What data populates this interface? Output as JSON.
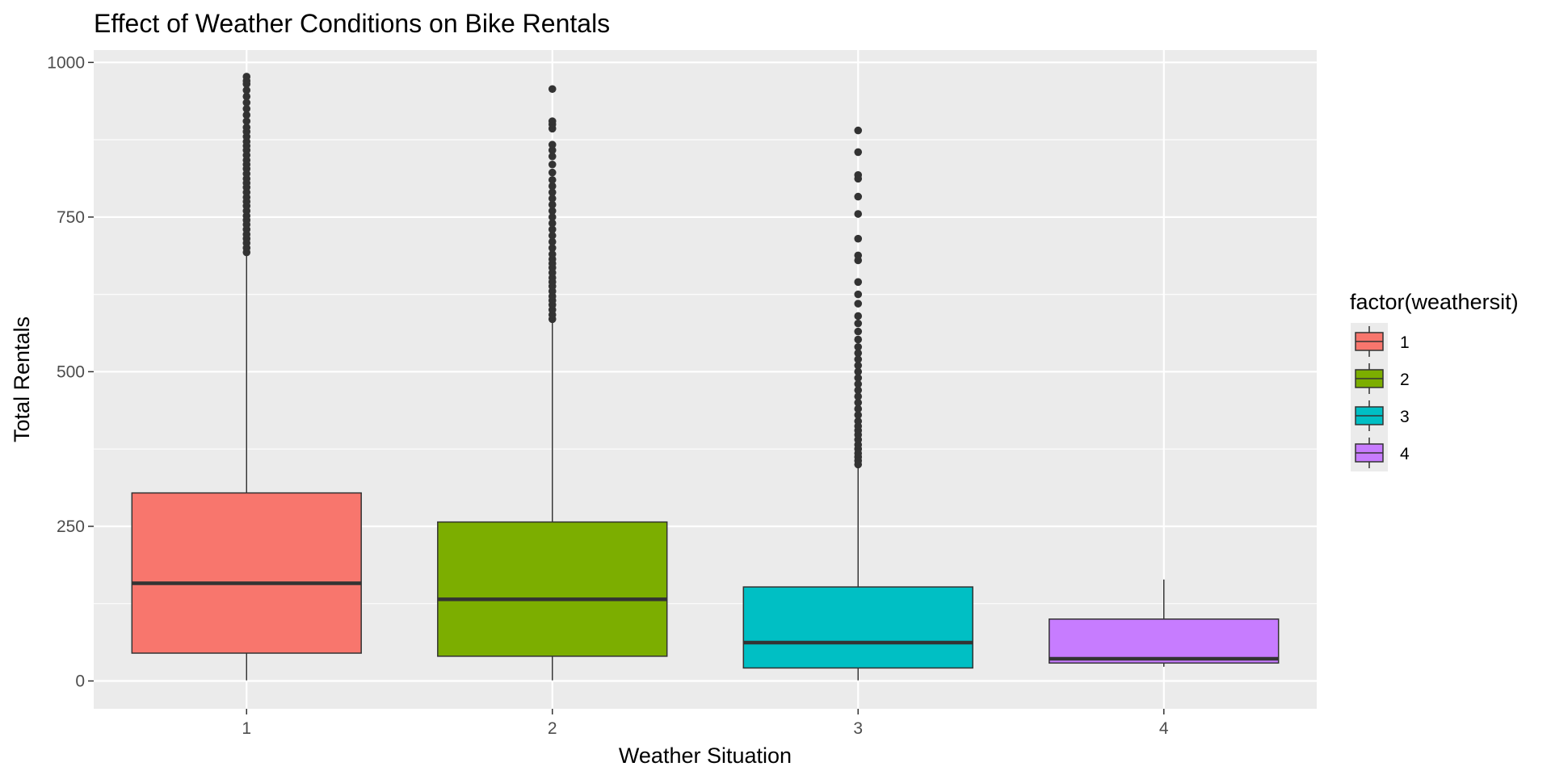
{
  "chart_data": {
    "type": "boxplot",
    "title": "Effect of Weather Conditions on Bike Rentals",
    "xlabel": "Weather Situation",
    "ylabel": "Total Rentals",
    "categories": [
      "1",
      "2",
      "3",
      "4"
    ],
    "ylim": [
      -45,
      1020
    ],
    "yticks": [
      0,
      250,
      500,
      750,
      1000
    ],
    "grid": true,
    "legend": {
      "title": "factor(weathersit)",
      "placement": "right",
      "entries": [
        "1",
        "2",
        "3",
        "4"
      ]
    },
    "colors": [
      "#F8766D",
      "#7CAE00",
      "#00BFC4",
      "#C77CFF"
    ],
    "boxes": [
      {
        "category": "1",
        "min": 1,
        "q1": 45,
        "median": 158,
        "q3": 304,
        "max": 692,
        "outliers": [
          693,
          700,
          708,
          715,
          722,
          730,
          738,
          745,
          752,
          760,
          768,
          775,
          782,
          790,
          798,
          805,
          812,
          820,
          828,
          835,
          842,
          850,
          858,
          865,
          872,
          880,
          888,
          895,
          905,
          915,
          925,
          935,
          945,
          955,
          965,
          970,
          977
        ]
      },
      {
        "category": "2",
        "min": 1,
        "q1": 40,
        "median": 132,
        "q3": 257,
        "max": 583,
        "outliers": [
          585,
          592,
          600,
          608,
          615,
          622,
          630,
          638,
          645,
          652,
          660,
          668,
          675,
          682,
          690,
          700,
          710,
          720,
          730,
          740,
          750,
          760,
          770,
          780,
          790,
          800,
          810,
          822,
          835,
          848,
          858,
          867,
          893,
          900,
          905,
          957
        ]
      },
      {
        "category": "3",
        "min": 1,
        "q1": 21,
        "median": 62,
        "q3": 152,
        "max": 346,
        "outliers": [
          350,
          356,
          362,
          368,
          375,
          382,
          390,
          398,
          405,
          412,
          420,
          430,
          440,
          450,
          460,
          470,
          480,
          490,
          500,
          510,
          520,
          530,
          540,
          552,
          565,
          578,
          590,
          610,
          625,
          645,
          680,
          688,
          715,
          755,
          783,
          812,
          818,
          855,
          890
        ]
      },
      {
        "category": "4",
        "min": 23,
        "q1": 29,
        "median": 36,
        "q3": 100,
        "max": 164,
        "outliers": []
      }
    ]
  }
}
